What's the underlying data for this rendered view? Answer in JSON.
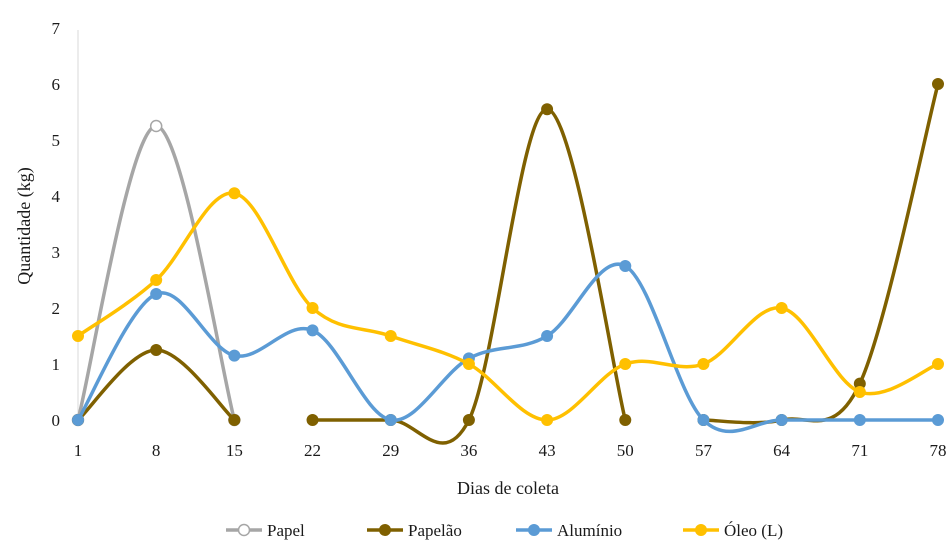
{
  "colors": {
    "papel": "#a6a6a6",
    "papelao": "#7f6000",
    "aluminio": "#5b9bd5",
    "oleo": "#ffc000",
    "axis": "#d9d9d9"
  },
  "chart_data": {
    "type": "line",
    "title": "",
    "xlabel": "Dias de coleta",
    "ylabel": "Quantidade (kg)",
    "x": [
      1,
      8,
      15,
      22,
      29,
      36,
      43,
      50,
      57,
      64,
      71,
      78
    ],
    "ylim": [
      0,
      7
    ],
    "yticks": [
      0,
      1,
      2,
      3,
      4,
      5,
      6,
      7
    ],
    "smooth": true,
    "grid": false,
    "legend_position": "bottom",
    "series": [
      {
        "name": "Papel",
        "color": "#a6a6a6",
        "marker": "open-circle",
        "x": [
          1,
          8,
          15
        ],
        "values": [
          0,
          5.25,
          0
        ]
      },
      {
        "name": "Papelão",
        "color": "#7f6000",
        "marker": "filled-circle",
        "segments": [
          {
            "x": [
              1,
              8,
              15
            ],
            "values": [
              0,
              1.25,
              0
            ]
          },
          {
            "x": [
              22,
              29,
              36,
              43,
              50
            ],
            "values": [
              0,
              0,
              0,
              5.55,
              0
            ]
          },
          {
            "x": [
              57,
              64,
              71,
              78
            ],
            "values": [
              0,
              0,
              0.65,
              6.0
            ]
          }
        ]
      },
      {
        "name": "Alumínio",
        "color": "#5b9bd5",
        "marker": "filled-circle",
        "x": [
          1,
          8,
          15,
          22,
          29,
          36,
          43,
          50,
          57,
          64,
          71,
          78
        ],
        "values": [
          0,
          2.25,
          1.15,
          1.6,
          0,
          1.1,
          1.5,
          2.75,
          0,
          0,
          0,
          0
        ]
      },
      {
        "name": "Óleo (L)",
        "color": "#ffc000",
        "marker": "filled-circle",
        "x": [
          1,
          8,
          15,
          22,
          29,
          36,
          43,
          50,
          57,
          64,
          71,
          78
        ],
        "values": [
          1.5,
          2.5,
          4.05,
          2.0,
          1.5,
          1.0,
          0,
          1.0,
          1.0,
          2.0,
          0.5,
          1.0
        ]
      }
    ]
  }
}
